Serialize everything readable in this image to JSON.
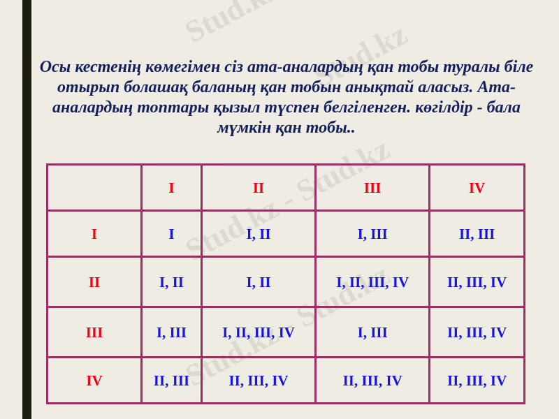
{
  "watermark": "Stud.kz",
  "title": "Осы кестенің көмегімен сіз ата-аналардың қан тобы туралы біле отырып болашақ баланың қан тобын анықтай алаcыз. Ата-аналардың топтары қызыл түспен белгіленген. көгілдір - бала мүмкін қан тобы..",
  "colors": {
    "parent_groups": "#f00010",
    "child_groups": "#1414e6",
    "border": "#9a2f68",
    "title": "#13205e"
  },
  "table": {
    "columns": [
      "",
      "I",
      "II",
      "III",
      "IV"
    ],
    "rows": [
      {
        "header": "I",
        "cells": [
          "I",
          "I, II",
          "I, III",
          "II, III"
        ]
      },
      {
        "header": "II",
        "cells": [
          "I, II",
          "I, II",
          "I, II, III, IV",
          "II, III, IV"
        ]
      },
      {
        "header": "III",
        "cells": [
          "I, III",
          "I, II, III, IV",
          "I, III",
          "II, III, IV"
        ]
      },
      {
        "header": "IV",
        "cells": [
          "II, III",
          "II, III, IV",
          "II, III, IV",
          "II, III, IV"
        ]
      }
    ]
  }
}
